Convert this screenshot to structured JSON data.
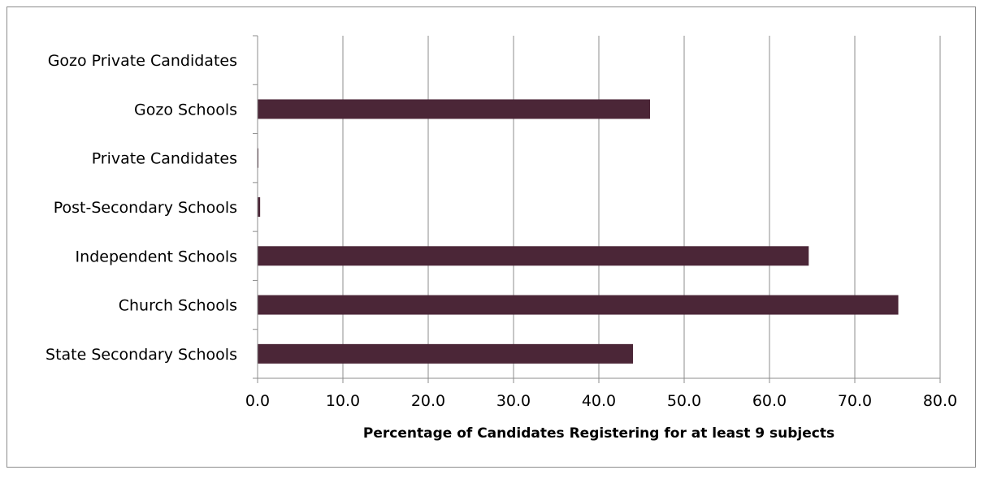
{
  "chart_data": {
    "type": "bar",
    "orientation": "horizontal",
    "categories": [
      "State Secondary Schools",
      "Church Schools",
      "Independent Schools",
      "Post-Secondary Schools",
      "Private Candidates",
      "Gozo Schools",
      "Gozo Private Candidates"
    ],
    "values": [
      44.0,
      75.1,
      64.6,
      0.3,
      0.1,
      46.0,
      0.0
    ],
    "title": "",
    "xlabel": "Percentage of Candidates Registering for at least 9 subjects",
    "ylabel": "",
    "xlim": [
      0,
      80
    ],
    "xticks": [
      "0.0",
      "10.0",
      "20.0",
      "30.0",
      "40.0",
      "50.0",
      "60.0",
      "70.0",
      "80.0"
    ],
    "grid": "vertical",
    "legend": "none",
    "bar_color": "#4b2637"
  }
}
